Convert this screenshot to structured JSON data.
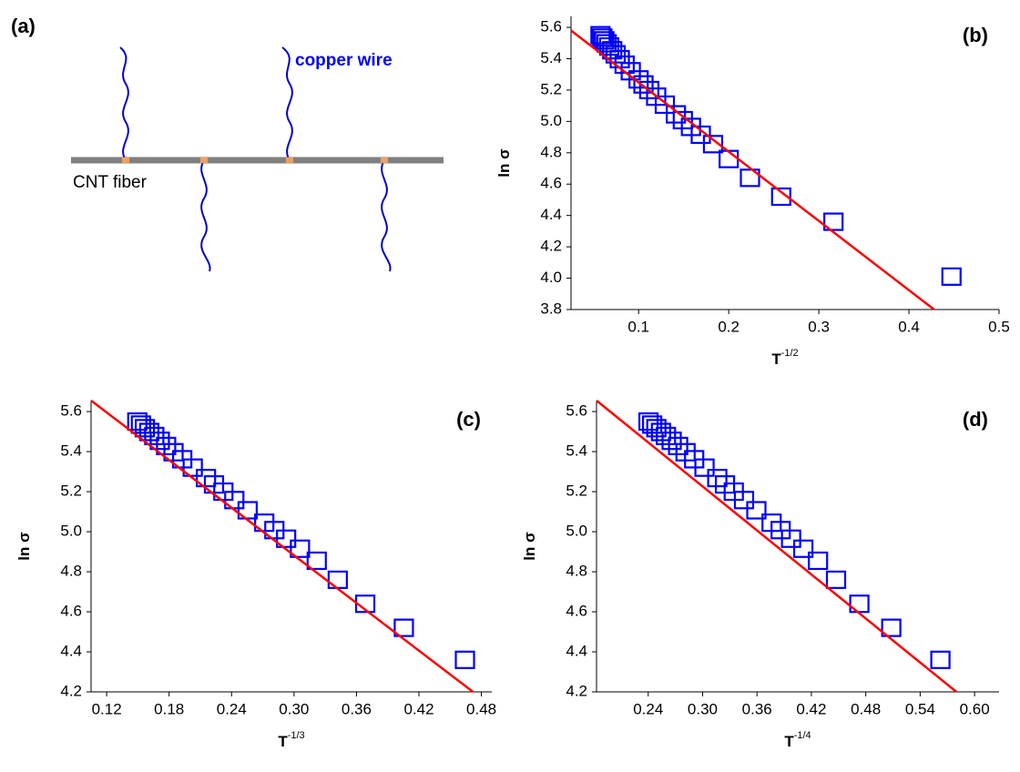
{
  "diagram": {
    "label": "(a)",
    "wire_label": "copper wire",
    "fiber_label": "CNT fiber"
  },
  "chart_data": [
    {
      "type": "scatter",
      "panel_label": "(b)",
      "y_label": "ln σ",
      "x_label": {
        "base": "T",
        "exponent": "-1/2"
      },
      "xlim": [
        0.025,
        0.5
      ],
      "ylim": [
        3.8,
        5.67
      ],
      "xticks": [
        0.1,
        0.2,
        0.3,
        0.4,
        0.5
      ],
      "yticks": [
        3.8,
        {
          "value": 4.0,
          "label": "4.0"
        },
        4.2,
        4.4,
        4.6,
        4.8,
        {
          "value": 5.0,
          "label": "5.0"
        },
        5.2,
        5.4,
        5.6
      ],
      "series": [
        {
          "color": "#0000ff",
          "x": [
            0.0577,
            0.0598,
            0.062,
            0.0645,
            0.0674,
            0.0707,
            0.0745,
            0.0791,
            0.0845,
            0.0913,
            0.1,
            0.1054,
            0.1118,
            0.1195,
            0.1291,
            0.1414,
            0.1491,
            0.1581,
            0.169,
            0.1826,
            0.2,
            0.2236,
            0.2582,
            0.3162,
            0.4472
          ],
          "values": [
            5.55,
            5.535,
            5.517,
            5.498,
            5.478,
            5.454,
            5.428,
            5.397,
            5.362,
            5.32,
            5.268,
            5.236,
            5.2,
            5.158,
            5.107,
            5.045,
            5.008,
            4.965,
            4.915,
            4.855,
            4.76,
            4.64,
            4.52,
            4.36,
            4.01
          ]
        }
      ],
      "fit": {
        "color": "#ff0000",
        "x": [
          0.025,
          0.428
        ],
        "values": [
          5.58,
          3.8
        ]
      }
    },
    {
      "type": "scatter",
      "panel_label": "(c)",
      "y_label": "ln σ",
      "x_label": {
        "base": "T",
        "exponent": "-1/3"
      },
      "xlim": [
        0.105,
        0.49
      ],
      "ylim": [
        4.2,
        5.655
      ],
      "xticks": [
        0.12,
        0.18,
        0.24,
        {
          "value": 0.3,
          "label": "0.30"
        },
        0.36,
        0.42,
        0.48
      ],
      "yticks": [
        4.2,
        4.4,
        4.6,
        4.8,
        {
          "value": 5.0,
          "label": "5.0"
        },
        5.2,
        5.4,
        5.6
      ],
      "series": [
        {
          "color": "#0000ff",
          "x": [
            0.1494,
            0.1529,
            0.1567,
            0.1609,
            0.1657,
            0.171,
            0.1771,
            0.1842,
            0.1926,
            0.2027,
            0.2154,
            0.2231,
            0.2321,
            0.2426,
            0.2554,
            0.2714,
            0.2811,
            0.2924,
            0.3057,
            0.3218,
            0.342,
            0.3684,
            0.4055,
            0.4642
          ],
          "values": [
            5.55,
            5.535,
            5.517,
            5.498,
            5.478,
            5.454,
            5.428,
            5.397,
            5.362,
            5.32,
            5.268,
            5.236,
            5.2,
            5.158,
            5.107,
            5.045,
            5.008,
            4.965,
            4.915,
            4.855,
            4.76,
            4.64,
            4.52,
            4.36
          ]
        }
      ],
      "fit": {
        "color": "#ff0000",
        "x": [
          0.105,
          0.472
        ],
        "values": [
          5.655,
          4.2
        ]
      }
    },
    {
      "type": "scatter",
      "panel_label": "(d)",
      "y_label": "ln σ",
      "x_label": {
        "base": "T",
        "exponent": "-1/4"
      },
      "xlim": [
        0.183,
        0.627
      ],
      "ylim": [
        4.2,
        5.655
      ],
      "xticks": [
        0.24,
        {
          "value": 0.3,
          "label": "0.30"
        },
        0.36,
        0.42,
        0.48,
        0.54,
        {
          "value": 0.6,
          "label": "0.60"
        }
      ],
      "yticks": [
        4.2,
        4.4,
        4.6,
        4.8,
        {
          "value": 5.0,
          "label": "5.0"
        },
        5.2,
        5.4,
        5.6
      ],
      "series": [
        {
          "color": "#0000ff",
          "x": [
            0.2403,
            0.2444,
            0.249,
            0.2541,
            0.2596,
            0.2659,
            0.273,
            0.2812,
            0.2907,
            0.3021,
            0.3162,
            0.3247,
            0.3344,
            0.3457,
            0.3593,
            0.3761,
            0.3861,
            0.3976,
            0.4111,
            0.4273,
            0.4472,
            0.4729,
            0.5081,
            0.5623
          ],
          "values": [
            5.55,
            5.535,
            5.517,
            5.498,
            5.478,
            5.454,
            5.428,
            5.397,
            5.362,
            5.32,
            5.268,
            5.236,
            5.2,
            5.158,
            5.107,
            5.045,
            5.008,
            4.965,
            4.915,
            4.855,
            4.76,
            4.64,
            4.52,
            4.36
          ]
        }
      ],
      "fit": {
        "color": "#ff0000",
        "x": [
          0.183,
          0.58
        ],
        "values": [
          5.655,
          4.2
        ]
      }
    }
  ]
}
